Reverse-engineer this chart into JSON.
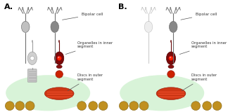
{
  "title_A": "A.",
  "title_B": "B.",
  "background_color": "#ffffff",
  "label_bipolar_cell": "Bipolar cell",
  "label_organelles": "Organelles in inner\nsegment",
  "label_discs": "Discs in outer\nsegment",
  "fig_width": 3.24,
  "fig_height": 1.6,
  "dpi": 100,
  "colors": {
    "rod_body": "#c0c0c0",
    "rod_inner": "#d0d0d0",
    "rod_nucleus": "#ffffff",
    "rod_nucleus_edge": "#aaaaaa",
    "rod_outer_seg": "#c8c8c8",
    "rod_outer_stripe": "#a8a8a8",
    "rod_axon": "#a0a0a0",
    "rod_synapse": "#c0c0c0",
    "cone_body": "#7a0a0a",
    "cone_body_edge": "#500000",
    "cone_nucleus": "#ff2200",
    "cone_nucleus_bright": "#ff8888",
    "cone_pedicle": "#881010",
    "cone_axon": "#6a0a0a",
    "bipolar_rod_color": "#c0c0c0",
    "bipolar_cone_color": "#888888",
    "bipolar_ghost_color": "#d0d0d0",
    "bipolar_edge": "#606060",
    "bipolar_axon": "#707070",
    "bipolar_dendrite": "#707070",
    "green_glow": "#7fd87f",
    "red_disc_base": "#cc2200",
    "disc_stripe": "#ff5533",
    "dot_color": "#c09020",
    "dot_edge": "#806010",
    "label_color": "#333333",
    "annotation_line": "#555555"
  }
}
